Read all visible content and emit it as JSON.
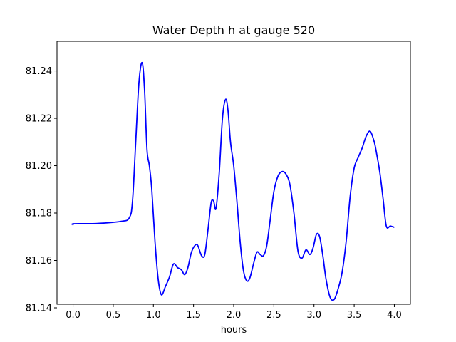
{
  "chart_data": {
    "type": "line",
    "title": "Water Depth h at gauge 520",
    "xlabel": "hours",
    "ylabel": "",
    "xlim": [
      -0.2,
      4.2
    ],
    "ylim": [
      81.1415,
      81.2525
    ],
    "xticks": [
      0.0,
      0.5,
      1.0,
      1.5,
      2.0,
      2.5,
      3.0,
      3.5,
      4.0
    ],
    "xtick_labels": [
      "0.0",
      "0.5",
      "1.0",
      "1.5",
      "2.0",
      "2.5",
      "3.0",
      "3.5",
      "4.0"
    ],
    "yticks": [
      81.14,
      81.16,
      81.18,
      81.2,
      81.22,
      81.24
    ],
    "ytick_labels": [
      "81.14",
      "81.16",
      "81.18",
      "81.20",
      "81.22",
      "81.24"
    ],
    "grid": false,
    "series": [
      {
        "color": "#0000ff",
        "x": [
          0.0,
          0.01,
          0.3,
          0.6,
          0.7,
          0.74,
          0.78,
          0.82,
          0.86,
          0.89,
          0.92,
          0.95,
          0.98,
          1.02,
          1.06,
          1.1,
          1.15,
          1.2,
          1.25,
          1.3,
          1.35,
          1.39,
          1.43,
          1.47,
          1.51,
          1.55,
          1.6,
          1.64,
          1.68,
          1.72,
          1.75,
          1.78,
          1.82,
          1.86,
          1.9,
          1.93,
          1.96,
          2.0,
          2.04,
          2.08,
          2.12,
          2.16,
          2.2,
          2.25,
          2.29,
          2.33,
          2.37,
          2.41,
          2.45,
          2.5,
          2.55,
          2.6,
          2.65,
          2.7,
          2.75,
          2.8,
          2.85,
          2.9,
          2.95,
          2.99,
          3.03,
          3.07,
          3.11,
          3.15,
          3.2,
          3.25,
          3.3,
          3.35,
          3.4,
          3.45,
          3.5,
          3.55,
          3.6,
          3.65,
          3.7,
          3.75,
          3.78,
          3.82,
          3.86,
          3.9,
          3.95,
          4.0
        ],
        "y": [
          81.175,
          81.1755,
          81.1756,
          81.1765,
          81.178,
          81.185,
          81.21,
          81.235,
          81.2435,
          81.232,
          81.207,
          81.2,
          81.19,
          81.168,
          81.152,
          81.1455,
          81.149,
          81.153,
          81.1585,
          81.157,
          81.156,
          81.154,
          81.157,
          81.163,
          81.166,
          81.1665,
          81.162,
          81.1625,
          81.173,
          81.1845,
          81.185,
          81.182,
          81.197,
          81.22,
          81.228,
          81.223,
          81.21,
          81.2,
          81.185,
          81.168,
          81.156,
          81.1515,
          81.1525,
          81.159,
          81.1635,
          81.1625,
          81.162,
          81.166,
          81.176,
          81.189,
          81.1955,
          81.1975,
          81.1965,
          81.192,
          81.18,
          81.164,
          81.161,
          81.1645,
          81.1625,
          81.1655,
          81.171,
          81.17,
          81.162,
          81.152,
          81.1445,
          81.1435,
          81.148,
          81.155,
          81.168,
          81.187,
          81.199,
          81.2035,
          81.2075,
          81.2125,
          81.2145,
          81.21,
          81.205,
          81.197,
          81.186,
          81.1745,
          81.1745,
          81.174
        ]
      }
    ]
  }
}
